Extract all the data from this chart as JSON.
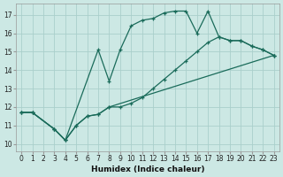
{
  "xlabel": "Humidex (Indice chaleur)",
  "background_color": "#cce8e4",
  "grid_color": "#aacfcb",
  "line_color": "#1a6b5a",
  "xlim": [
    -0.5,
    23.5
  ],
  "ylim": [
    9.6,
    17.6
  ],
  "xticks": [
    0,
    1,
    2,
    3,
    4,
    5,
    6,
    7,
    8,
    9,
    10,
    11,
    12,
    13,
    14,
    15,
    16,
    17,
    18,
    19,
    20,
    21,
    22,
    23
  ],
  "yticks": [
    10,
    11,
    12,
    13,
    14,
    15,
    16,
    17
  ],
  "line1_x": [
    0,
    1,
    3,
    4,
    7,
    8,
    9,
    10,
    11,
    12,
    13,
    14,
    15,
    16,
    17,
    18,
    19,
    20,
    21,
    22,
    23
  ],
  "line1_y": [
    11.7,
    11.7,
    10.8,
    10.2,
    15.1,
    13.4,
    15.1,
    16.4,
    16.7,
    16.8,
    17.1,
    17.2,
    17.2,
    16.0,
    17.2,
    15.8,
    15.6,
    15.6,
    15.3,
    15.1,
    14.8
  ],
  "line2_x": [
    0,
    1,
    3,
    4,
    5,
    6,
    7,
    8,
    23
  ],
  "line2_y": [
    11.7,
    11.7,
    10.8,
    10.2,
    11.0,
    11.5,
    11.6,
    12.0,
    14.8
  ],
  "line3_x": [
    0,
    1,
    3,
    4,
    5,
    6,
    7,
    8,
    9,
    10,
    11,
    12,
    13,
    14,
    15,
    16,
    17,
    18,
    19,
    20,
    21,
    22,
    23
  ],
  "line3_y": [
    11.7,
    11.7,
    10.8,
    10.2,
    11.0,
    11.5,
    11.6,
    12.0,
    12.0,
    12.2,
    12.5,
    13.0,
    13.5,
    14.0,
    14.5,
    15.0,
    15.5,
    15.8,
    15.6,
    15.6,
    15.3,
    15.1,
    14.8
  ]
}
